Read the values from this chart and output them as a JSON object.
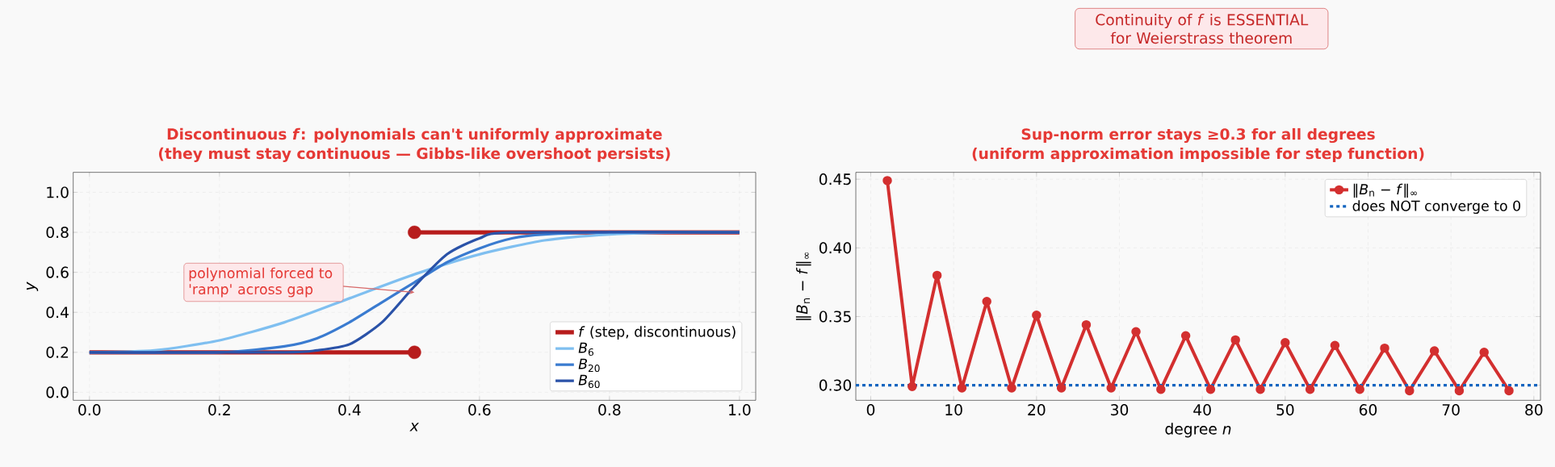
{
  "chart_data": [
    {
      "type": "line",
      "title": "Discontinuous *f*: polynomials can't uniformly approximate",
      "subtitle": "(they must stay continuous — Gibbs-like overshoot persists)",
      "xlabel": "*x*",
      "ylabel": "*y*",
      "xlim": [
        -0.025,
        1.025
      ],
      "ylim": [
        -0.04,
        1.1
      ],
      "xticks": [
        {
          "value": 0,
          "label": "0.0"
        },
        0.2,
        0.4,
        0.6,
        0.8,
        {
          "value": 1,
          "label": "1.0"
        }
      ],
      "yticks": [
        {
          "value": 0,
          "label": "0.0"
        },
        0.2,
        0.4,
        0.6,
        0.8,
        {
          "value": 1,
          "label": "1.0"
        }
      ],
      "grid": true,
      "legend": "bottom right",
      "series": [
        {
          "name": "*f* (step, discontinuous)",
          "color": "#b71c1c",
          "x": [
            0,
            0.5
          ],
          "values": [
            0.2,
            0.2
          ]
        },
        {
          "color": "#b71c1c",
          "x": [
            0.5,
            1
          ],
          "values": [
            0.8,
            0.8
          ]
        },
        {
          "name": "*B*$_{6}$",
          "color": "#7fbff0",
          "x": [
            0,
            0.1,
            0.2,
            0.3,
            0.4,
            0.5,
            0.6,
            0.7,
            0.8,
            0.9,
            1
          ],
          "values": [
            0.2,
            0.21,
            0.26,
            0.35,
            0.47,
            0.59,
            0.69,
            0.76,
            0.79,
            0.8,
            0.8
          ]
        },
        {
          "name": "*B*$_{20}$",
          "color": "#3a7bd0",
          "x": [
            0,
            0.2,
            0.3,
            0.35,
            0.4,
            0.45,
            0.5,
            0.55,
            0.6,
            0.65,
            0.7,
            0.8,
            1
          ],
          "values": [
            0.2,
            0.2,
            0.23,
            0.27,
            0.35,
            0.45,
            0.55,
            0.65,
            0.72,
            0.77,
            0.79,
            0.8,
            0.8
          ]
        },
        {
          "name": "*B*$_{60}$",
          "color": "#2a52a8",
          "x": [
            0,
            0.3,
            0.35,
            0.4,
            0.45,
            0.5,
            0.55,
            0.6,
            0.65,
            1
          ],
          "values": [
            0.2,
            0.2,
            0.21,
            0.24,
            0.35,
            0.53,
            0.69,
            0.77,
            0.8,
            0.8
          ]
        },
        {
          "type": "scatter",
          "color": "#b71c1c",
          "marker": "circle",
          "x": [
            0.5,
            0.5
          ],
          "values": [
            0.8,
            0.2
          ]
        }
      ],
      "annotations": [
        {
          "text": "polynomial forced to 'ramp' across gap",
          "x": 0.5,
          "y": 0.5
        }
      ]
    },
    {
      "type": "line",
      "title": "Sup-norm error stays ≥0.3 for all degrees",
      "subtitle": "(uniform approximation impossible for step function)",
      "xlabel": "degree *n*",
      "ylabel": "‖*B*$_{n}$ − *f*‖$_{∞}$",
      "xlim": [
        -1.8,
        80.8
      ],
      "ylim": [
        0.289,
        0.455
      ],
      "xticks": [
        0,
        10,
        20,
        30,
        40,
        50,
        60,
        70,
        80
      ],
      "yticks": [
        {
          "value": 0.3,
          "label": "0.30"
        },
        0.35,
        {
          "value": 0.4,
          "label": "0.40"
        },
        0.45
      ],
      "grid": true,
      "legend": "top right",
      "marker": "circle",
      "series": [
        {
          "name": "‖*B*$_{n}$ − *f*‖$_{∞}$",
          "color": "#d32f2f",
          "x": [
            2,
            5,
            8,
            11,
            14,
            17,
            20,
            23,
            26,
            29,
            32,
            35,
            38,
            41,
            44,
            47,
            50,
            53,
            56,
            59,
            62,
            65,
            68,
            71,
            74,
            77
          ],
          "values": [
            0.449,
            0.299,
            0.38,
            0.298,
            0.361,
            0.298,
            0.351,
            0.298,
            0.344,
            0.298,
            0.339,
            0.297,
            0.336,
            0.297,
            0.333,
            0.297,
            0.331,
            0.297,
            0.329,
            0.297,
            0.327,
            0.296,
            0.325,
            0.296,
            0.324,
            0.296
          ]
        }
      ],
      "ref_lines": [
        {
          "axis": "y",
          "value": 0.3,
          "label": "does NOT converge to 0",
          "color": "#1565c0",
          "line_style": "dashed"
        }
      ],
      "annotations": [
        "Continuity of *f* is ESSENTIAL for Weierstrass theorem"
      ]
    }
  ]
}
